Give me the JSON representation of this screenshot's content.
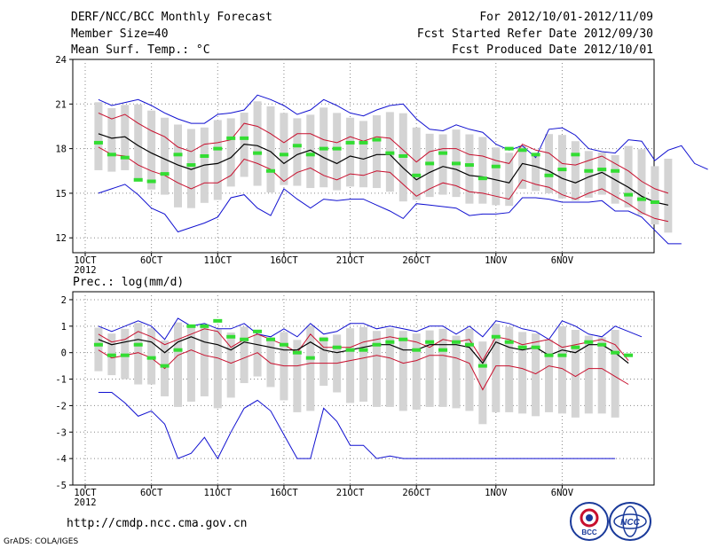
{
  "header": {
    "title": "DERF/NCC/BCC Monthly Forecast",
    "member": "Member Size=40",
    "variable": "Mean Surf. Temp.: °C",
    "period": "For 2012/10/01-2012/11/09",
    "started": "Fcst Started Refer Date 2012/09/30",
    "produced": "Fcst Produced Date 2012/10/01"
  },
  "footer": {
    "url": "http://cmdp.ncc.cma.gov.cn",
    "credit": "GrADS: COLA/IGES",
    "logo1": "BCC",
    "logo2": "NCC"
  },
  "colors": {
    "grid": "#000000",
    "box": "#d4d4d4",
    "mean": "#000000",
    "sd": "#c8102e",
    "extreme": "#1010d0",
    "marker": "#33dd33"
  },
  "chart_data": [
    {
      "type": "line",
      "title": "Mean Surf. Temp.: °C",
      "ylim": [
        11,
        24
      ],
      "yticks": [
        12,
        15,
        18,
        21,
        24
      ],
      "xtick_days": [
        1,
        6,
        11,
        16,
        21,
        26,
        32,
        37
      ],
      "xtick_labels": [
        "1OCT",
        "6OCT",
        "11OCT",
        "16OCT",
        "21OCT",
        "26OCT",
        "1NOV",
        "6NOV"
      ],
      "year_label": "2012",
      "days": 40,
      "series": [
        {
          "name": "max",
          "values": [
            21.3,
            20.9,
            21.1,
            21.3,
            20.9,
            20.4,
            20.0,
            19.7,
            19.7,
            20.3,
            20.4,
            20.6,
            21.6,
            21.3,
            20.9,
            20.3,
            20.6,
            21.3,
            20.9,
            20.4,
            20.2,
            20.6,
            20.9,
            21.0,
            20.0,
            19.3,
            19.2,
            19.6,
            19.3,
            19.1,
            18.3,
            17.9,
            18.2,
            17.4,
            19.3,
            19.4,
            18.9,
            18.0,
            17.8,
            17.7,
            18.6,
            18.5,
            17.2,
            17.9,
            18.2,
            17.0,
            16.6
          ]
        },
        {
          "name": "+1sd",
          "values": [
            20.4,
            20.0,
            20.3,
            19.7,
            19.2,
            18.8,
            18.1,
            17.8,
            18.3,
            18.4,
            18.6,
            19.7,
            19.5,
            19.0,
            18.4,
            19.0,
            19.0,
            18.6,
            18.4,
            18.8,
            18.5,
            18.8,
            18.7,
            17.9,
            17.1,
            17.8,
            18.0,
            18.0,
            17.6,
            17.5,
            17.2,
            17.0,
            18.3,
            17.9,
            17.7,
            17.0,
            16.9,
            17.2,
            17.5,
            17.0,
            16.5,
            15.8,
            15.3,
            15.0
          ]
        },
        {
          "name": "mean",
          "values": [
            19.0,
            18.7,
            18.8,
            18.2,
            17.7,
            17.3,
            16.9,
            16.6,
            16.9,
            17.0,
            17.4,
            18.3,
            18.2,
            17.8,
            17.0,
            17.6,
            17.9,
            17.4,
            17.0,
            17.5,
            17.3,
            17.6,
            17.6,
            16.7,
            15.9,
            16.4,
            16.8,
            16.6,
            16.2,
            16.1,
            15.9,
            15.7,
            17.0,
            16.8,
            16.5,
            16.0,
            15.7,
            16.1,
            16.4,
            15.9,
            15.4,
            14.8,
            14.4,
            14.2
          ]
        },
        {
          "name": "-1sd",
          "values": [
            18.1,
            17.6,
            17.5,
            16.9,
            16.5,
            16.2,
            15.7,
            15.3,
            15.7,
            15.7,
            16.2,
            17.3,
            17.0,
            16.6,
            15.8,
            16.4,
            16.7,
            16.2,
            15.9,
            16.3,
            16.2,
            16.5,
            16.4,
            15.6,
            14.8,
            15.3,
            15.7,
            15.5,
            15.1,
            15.0,
            14.8,
            14.6,
            15.9,
            15.6,
            15.4,
            14.9,
            14.6,
            15.0,
            15.3,
            14.8,
            14.3,
            13.7,
            13.3,
            13.1
          ]
        },
        {
          "name": "min",
          "values": [
            15.0,
            15.3,
            15.6,
            14.9,
            14.0,
            13.6,
            12.4,
            12.7,
            13.0,
            13.4,
            14.7,
            14.9,
            14.0,
            13.5,
            15.3,
            14.6,
            14.0,
            14.6,
            14.5,
            14.6,
            14.6,
            14.2,
            13.8,
            13.3,
            14.3,
            14.2,
            14.1,
            14.0,
            13.5,
            13.6,
            13.6,
            13.7,
            14.7,
            14.7,
            14.6,
            14.4,
            14.4,
            14.4,
            14.5,
            13.8,
            13.8,
            13.4,
            12.5,
            11.6,
            11.6
          ]
        },
        {
          "name": "observed",
          "values": [
            18.4,
            17.6,
            17.4,
            15.9,
            15.8,
            16.3,
            17.6,
            16.9,
            17.5,
            18.0,
            18.7,
            18.7,
            17.7,
            16.5,
            17.6,
            18.2,
            17.6,
            18.0,
            18.0,
            18.4,
            18.4,
            18.6,
            17.7,
            17.5,
            16.2,
            17.0,
            17.7,
            17.0,
            16.9,
            16.0,
            16.8,
            18.0,
            17.9,
            17.6,
            16.2,
            16.6,
            17.6,
            16.5,
            16.6,
            16.5,
            14.9,
            14.6,
            14.4
          ]
        }
      ]
    },
    {
      "type": "line",
      "title": "Prec.: log(mm/d)",
      "ylim": [
        -5,
        2.3
      ],
      "yticks": [
        -5,
        -4,
        -3,
        -2,
        -1,
        0,
        1,
        2
      ],
      "xtick_days": [
        1,
        6,
        11,
        16,
        21,
        26,
        32,
        37
      ],
      "xtick_labels": [
        "1OCT",
        "6OCT",
        "11OCT",
        "16OCT",
        "21OCT",
        "26OCT",
        "1NOV",
        "6NOV"
      ],
      "year_label": "2012",
      "days": 40,
      "series": [
        {
          "name": "max",
          "values": [
            1.0,
            0.8,
            1.0,
            1.2,
            1.0,
            0.5,
            1.3,
            1.0,
            1.1,
            0.9,
            0.9,
            1.1,
            0.7,
            0.6,
            0.9,
            0.6,
            1.1,
            0.7,
            0.8,
            1.1,
            1.1,
            0.9,
            1.0,
            0.9,
            0.8,
            1.0,
            1.0,
            0.7,
            1.0,
            0.6,
            1.2,
            1.1,
            0.9,
            0.8,
            0.5,
            1.2,
            1.0,
            0.7,
            0.6,
            1.0,
            0.8,
            0.6
          ]
        },
        {
          "name": "+1sd",
          "values": [
            0.7,
            0.4,
            0.5,
            0.8,
            0.6,
            0.3,
            0.5,
            0.7,
            0.9,
            0.8,
            0.2,
            0.5,
            0.7,
            0.5,
            0.3,
            0.0,
            0.7,
            0.2,
            0.2,
            0.2,
            0.4,
            0.5,
            0.6,
            0.5,
            0.4,
            0.2,
            0.5,
            0.4,
            0.5,
            -0.3,
            0.6,
            0.5,
            0.3,
            0.4,
            0.5,
            0.2,
            0.3,
            0.4,
            0.5,
            0.3,
            -0.3
          ]
        },
        {
          "name": "mean",
          "values": [
            0.5,
            0.3,
            0.4,
            0.5,
            0.4,
            0.0,
            0.4,
            0.6,
            0.4,
            0.3,
            0.1,
            0.4,
            0.3,
            0.2,
            0.1,
            0.1,
            0.4,
            0.1,
            0.0,
            0.1,
            0.2,
            0.3,
            0.3,
            0.1,
            0.1,
            0.3,
            0.3,
            0.3,
            0.2,
            -0.4,
            0.4,
            0.2,
            0.1,
            0.2,
            -0.1,
            0.1,
            0.0,
            0.3,
            0.3,
            0.0,
            -0.4
          ]
        },
        {
          "name": "-1sd",
          "values": [
            0.1,
            -0.2,
            -0.1,
            0.0,
            -0.2,
            -0.6,
            -0.1,
            0.1,
            -0.1,
            -0.2,
            -0.4,
            -0.2,
            0.0,
            -0.4,
            -0.5,
            -0.5,
            -0.4,
            -0.4,
            -0.4,
            -0.3,
            -0.2,
            -0.1,
            -0.2,
            -0.4,
            -0.3,
            -0.1,
            -0.1,
            -0.2,
            -0.4,
            -1.4,
            -0.5,
            -0.5,
            -0.6,
            -0.8,
            -0.5,
            -0.6,
            -0.9,
            -0.6,
            -0.6,
            -0.9,
            -1.2
          ]
        },
        {
          "name": "min",
          "values": [
            -1.5,
            -1.5,
            -1.9,
            -2.4,
            -2.2,
            -2.7,
            -4.0,
            -3.8,
            -3.2,
            -4.0,
            -3.0,
            -2.1,
            -1.8,
            -2.2,
            -3.1,
            -4.0,
            -4.0,
            -2.1,
            -2.6,
            -3.5,
            -3.5,
            -4.0,
            -3.9,
            -4.0,
            -4.0,
            -4.0,
            -4.0,
            -4.0,
            -4.0,
            -4.0,
            -4.0,
            -4.0,
            -4.0,
            -4.0,
            -4.0,
            -4.0,
            -4.0,
            -4.0,
            -4.0,
            -4.0
          ]
        },
        {
          "name": "observed",
          "values": [
            0.3,
            -0.1,
            -0.1,
            0.3,
            -0.2,
            -0.5,
            0.1,
            1.0,
            1.0,
            1.2,
            0.6,
            0.5,
            0.8,
            0.5,
            0.3,
            0.0,
            -0.2,
            0.5,
            0.2,
            0.1,
            0.1,
            0.3,
            0.4,
            0.5,
            0.1,
            0.4,
            0.1,
            0.4,
            0.3,
            -0.5,
            0.6,
            0.4,
            0.2,
            0.2,
            -0.1,
            -0.1,
            0.2,
            0.4,
            0.3,
            0.0,
            -0.1
          ]
        }
      ]
    }
  ]
}
